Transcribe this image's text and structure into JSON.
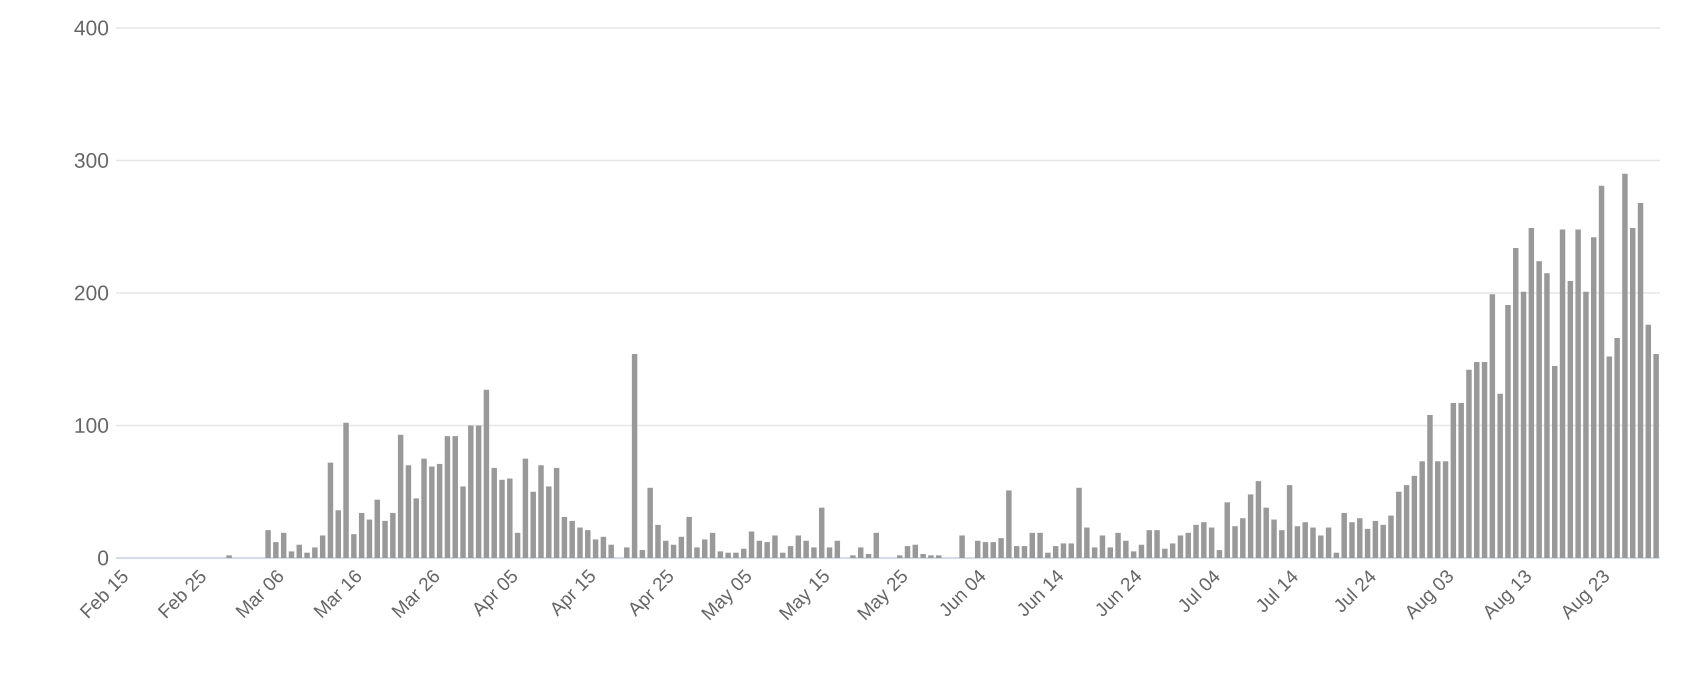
{
  "chart_data": {
    "type": "bar",
    "categories": [
      "Feb 15",
      null,
      null,
      null,
      null,
      null,
      null,
      null,
      null,
      null,
      "Feb 25",
      null,
      null,
      null,
      null,
      null,
      null,
      null,
      null,
      null,
      "Mar 06",
      null,
      null,
      null,
      null,
      null,
      null,
      null,
      null,
      null,
      "Mar 16",
      null,
      null,
      null,
      null,
      null,
      null,
      null,
      null,
      null,
      "Mar 26",
      null,
      null,
      null,
      null,
      null,
      null,
      null,
      null,
      null,
      "Apr 05",
      null,
      null,
      null,
      null,
      null,
      null,
      null,
      null,
      null,
      "Apr 15",
      null,
      null,
      null,
      null,
      null,
      null,
      null,
      null,
      null,
      "Apr 25",
      null,
      null,
      null,
      null,
      null,
      null,
      null,
      null,
      null,
      "May 05",
      null,
      null,
      null,
      null,
      null,
      null,
      null,
      null,
      null,
      "May 15",
      null,
      null,
      null,
      null,
      null,
      null,
      null,
      null,
      null,
      "May 25",
      null,
      null,
      null,
      null,
      null,
      null,
      null,
      null,
      null,
      "Jun 04",
      null,
      null,
      null,
      null,
      null,
      null,
      null,
      null,
      null,
      "Jun 14",
      null,
      null,
      null,
      null,
      null,
      null,
      null,
      null,
      null,
      "Jun 24",
      null,
      null,
      null,
      null,
      null,
      null,
      null,
      null,
      null,
      "Jul 04",
      null,
      null,
      null,
      null,
      null,
      null,
      null,
      null,
      null,
      "Jul 14",
      null,
      null,
      null,
      null,
      null,
      null,
      null,
      null,
      null,
      "Jul 24",
      null,
      null,
      null,
      null,
      null,
      null,
      null,
      null,
      null,
      "Aug 03",
      null,
      null,
      null,
      null,
      null,
      null,
      null,
      null,
      null,
      "Aug 13",
      null,
      null,
      null,
      null,
      null,
      null,
      null,
      null,
      null,
      "Aug 23",
      null,
      null,
      null,
      null,
      null,
      null,
      null
    ],
    "values": [
      0,
      0,
      0,
      0,
      0,
      0,
      0,
      0,
      0,
      0,
      0,
      0,
      0,
      0,
      2,
      0,
      0,
      0,
      0,
      21,
      12,
      19,
      5,
      10,
      4,
      8,
      17,
      72,
      36,
      102,
      18,
      34,
      29,
      44,
      28,
      34,
      93,
      70,
      45,
      75,
      69,
      71,
      92,
      92,
      54,
      100,
      100,
      127,
      68,
      59,
      60,
      19,
      75,
      50,
      70,
      54,
      68,
      31,
      28,
      23,
      21,
      14,
      16,
      10,
      0,
      8,
      154,
      6,
      53,
      25,
      13,
      10,
      16,
      31,
      8,
      14,
      19,
      5,
      4,
      4,
      7,
      20,
      13,
      12,
      17,
      4,
      9,
      17,
      13,
      8,
      38,
      8,
      13,
      0,
      2,
      8,
      3,
      19,
      0,
      0,
      2,
      9,
      10,
      3,
      2,
      2,
      0,
      0,
      17,
      0,
      13,
      12,
      12,
      15,
      51,
      9,
      9,
      19,
      19,
      4,
      9,
      11,
      11,
      53,
      23,
      8,
      17,
      8,
      19,
      13,
      5,
      10,
      21,
      21,
      7,
      11,
      17,
      19,
      25,
      27,
      23,
      6,
      42,
      24,
      30,
      48,
      58,
      38,
      29,
      21,
      55,
      24,
      27,
      23,
      17,
      23,
      4,
      34,
      27,
      30,
      22,
      28,
      25,
      32,
      50,
      55,
      62,
      73,
      108,
      73,
      73,
      117,
      117,
      142,
      148,
      148,
      199,
      124,
      191,
      234,
      201,
      249,
      224,
      215,
      145,
      248,
      209,
      248,
      201,
      242,
      281,
      152,
      166,
      290,
      249,
      268,
      176,
      154
    ],
    "color": "#999999",
    "ylim": [
      0,
      400
    ],
    "yticks": [
      0,
      100,
      200,
      300,
      400
    ],
    "grid": "y"
  }
}
